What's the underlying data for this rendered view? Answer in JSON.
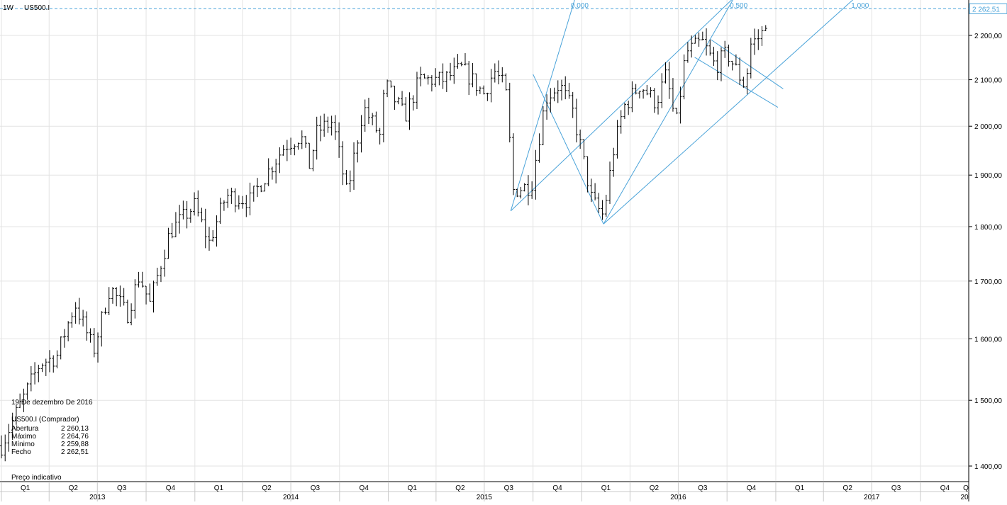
{
  "header": {
    "timeframe": "1W",
    "symbol": "US500.I"
  },
  "tooltip": {
    "date": "19 De dezembro De 2016",
    "instrument": "US500.I (Comprador)",
    "rows": [
      {
        "label": "Abertura",
        "value": "2 260,13"
      },
      {
        "label": "Máximo",
        "value": "2 264,76"
      },
      {
        "label": "Mínimo",
        "value": "2 259,88"
      },
      {
        "label": "Fecho",
        "value": "2 262,51"
      }
    ]
  },
  "footer_note": "Preço indicativo",
  "colors": {
    "bars": "#000000",
    "fib": "#4aa3d9",
    "grid": "#e3e3e3",
    "price_tag": "#4aa3d9"
  },
  "chart_data": {
    "type": "ohlc",
    "scale": "log",
    "ylim": [
      1380,
      2290
    ],
    "y_ticks": [
      1400,
      1500,
      1600,
      1700,
      1800,
      1900,
      2000,
      2100,
      2200
    ],
    "y_tick_labels": [
      "1 400,00",
      "1 500,00",
      "1 600,00",
      "1 700,00",
      "1 800,00",
      "1 900,00",
      "2 000,00",
      "2 100,00",
      "2 200,00"
    ],
    "last_price": 2262.51,
    "last_price_label": "2 262,51",
    "x_start": "2013-01-01",
    "x_end": "2017-12-31",
    "quarters": [
      {
        "label": "Q1",
        "date": "2013-01-01"
      },
      {
        "label": "Q2",
        "date": "2013-04-01"
      },
      {
        "label": "Q3",
        "date": "2013-07-01"
      },
      {
        "label": "Q4",
        "date": "2013-10-01"
      },
      {
        "label": "Q1",
        "date": "2014-01-01"
      },
      {
        "label": "Q2",
        "date": "2014-04-01"
      },
      {
        "label": "Q3",
        "date": "2014-07-01"
      },
      {
        "label": "Q4",
        "date": "2014-10-01"
      },
      {
        "label": "Q1",
        "date": "2015-01-01"
      },
      {
        "label": "Q2",
        "date": "2015-04-01"
      },
      {
        "label": "Q3",
        "date": "2015-07-01"
      },
      {
        "label": "Q4",
        "date": "2015-10-01"
      },
      {
        "label": "Q1",
        "date": "2016-01-01"
      },
      {
        "label": "Q2",
        "date": "2016-04-01"
      },
      {
        "label": "Q3",
        "date": "2016-07-01"
      },
      {
        "label": "Q4",
        "date": "2016-10-01"
      },
      {
        "label": "Q1",
        "date": "2017-01-01"
      },
      {
        "label": "Q2",
        "date": "2017-04-01"
      },
      {
        "label": "Q3",
        "date": "2017-07-01"
      },
      {
        "label": "Q4",
        "date": "2017-10-01"
      },
      {
        "label": "Q",
        "date": "2018-01-01"
      }
    ],
    "years": [
      {
        "label": "2013",
        "date": "2013-07-01"
      },
      {
        "label": "2014",
        "date": "2014-07-01"
      },
      {
        "label": "2015",
        "date": "2015-07-01"
      },
      {
        "label": "2016",
        "date": "2016-07-01"
      },
      {
        "label": "2017",
        "date": "2017-07-01"
      },
      {
        "label": "20",
        "date": "2018-01-01"
      }
    ],
    "path": [
      [
        "2013-01-01",
        1430
      ],
      [
        "2013-02-15",
        1510
      ],
      [
        "2013-03-15",
        1560
      ],
      [
        "2013-04-15",
        1570
      ],
      [
        "2013-05-20",
        1660
      ],
      [
        "2013-06-24",
        1580
      ],
      [
        "2013-07-25",
        1690
      ],
      [
        "2013-08-26",
        1640
      ],
      [
        "2013-09-18",
        1710
      ],
      [
        "2013-10-08",
        1660
      ],
      [
        "2013-11-15",
        1790
      ],
      [
        "2013-12-31",
        1840
      ],
      [
        "2014-01-28",
        1770
      ],
      [
        "2014-03-01",
        1860
      ],
      [
        "2014-04-15",
        1850
      ],
      [
        "2014-05-15",
        1900
      ],
      [
        "2014-06-20",
        1960
      ],
      [
        "2014-07-20",
        1980
      ],
      [
        "2014-08-05",
        1920
      ],
      [
        "2014-08-20",
        1990
      ],
      [
        "2014-09-18",
        2010
      ],
      [
        "2014-10-15",
        1860
      ],
      [
        "2014-11-15",
        2040
      ],
      [
        "2014-12-16",
        1980
      ],
      [
        "2014-12-26",
        2090
      ],
      [
        "2015-02-01",
        2020
      ],
      [
        "2015-03-01",
        2100
      ],
      [
        "2015-04-15",
        2100
      ],
      [
        "2015-05-20",
        2125
      ],
      [
        "2015-06-30",
        2070
      ],
      [
        "2015-07-20",
        2120
      ],
      [
        "2015-08-10",
        2080
      ],
      [
        "2015-08-25",
        1870
      ],
      [
        "2015-09-28",
        1880
      ],
      [
        "2015-10-25",
        2060
      ],
      [
        "2015-11-20",
        2090
      ],
      [
        "2015-12-15",
        2030
      ],
      [
        "2016-01-20",
        1850
      ],
      [
        "2016-02-11",
        1820
      ],
      [
        "2016-03-01",
        1950
      ],
      [
        "2016-03-20",
        2040
      ],
      [
        "2016-04-20",
        2090
      ],
      [
        "2016-05-20",
        2050
      ],
      [
        "2016-06-08",
        2110
      ],
      [
        "2016-06-27",
        2000
      ],
      [
        "2016-07-15",
        2160
      ],
      [
        "2016-08-15",
        2185
      ],
      [
        "2016-09-09",
        2130
      ],
      [
        "2016-10-01",
        2160
      ],
      [
        "2016-11-04",
        2085
      ],
      [
        "2016-11-15",
        2180
      ],
      [
        "2016-12-05",
        2200
      ],
      [
        "2016-12-19",
        2262
      ]
    ],
    "fib_labels": [
      {
        "label": "0,000",
        "x_date": "2015-12-20"
      },
      {
        "label": "0,500",
        "x_date": "2016-10-15"
      },
      {
        "label": "1,000",
        "x_date": "2017-06-01"
      }
    ],
    "fib_fan_lines": [
      [
        [
          "2015-08-20",
          1830
        ],
        [
          "2015-12-20",
          2290
        ]
      ],
      [
        [
          "2016-02-11",
          1805
        ],
        [
          "2016-10-15",
          2290
        ]
      ],
      [
        [
          "2015-08-20",
          1830
        ],
        [
          "2016-10-15",
          2290
        ]
      ],
      [
        [
          "2016-02-11",
          1805
        ],
        [
          "2017-06-01",
          2290
        ]
      ],
      [
        [
          "2015-10-01",
          2112
        ],
        [
          "2016-02-11",
          1805
        ]
      ],
      [
        [
          "2016-09-01",
          2190
        ],
        [
          "2017-01-15",
          2080
        ]
      ],
      [
        [
          "2016-08-01",
          2150
        ],
        [
          "2017-01-05",
          2040
        ]
      ]
    ]
  }
}
